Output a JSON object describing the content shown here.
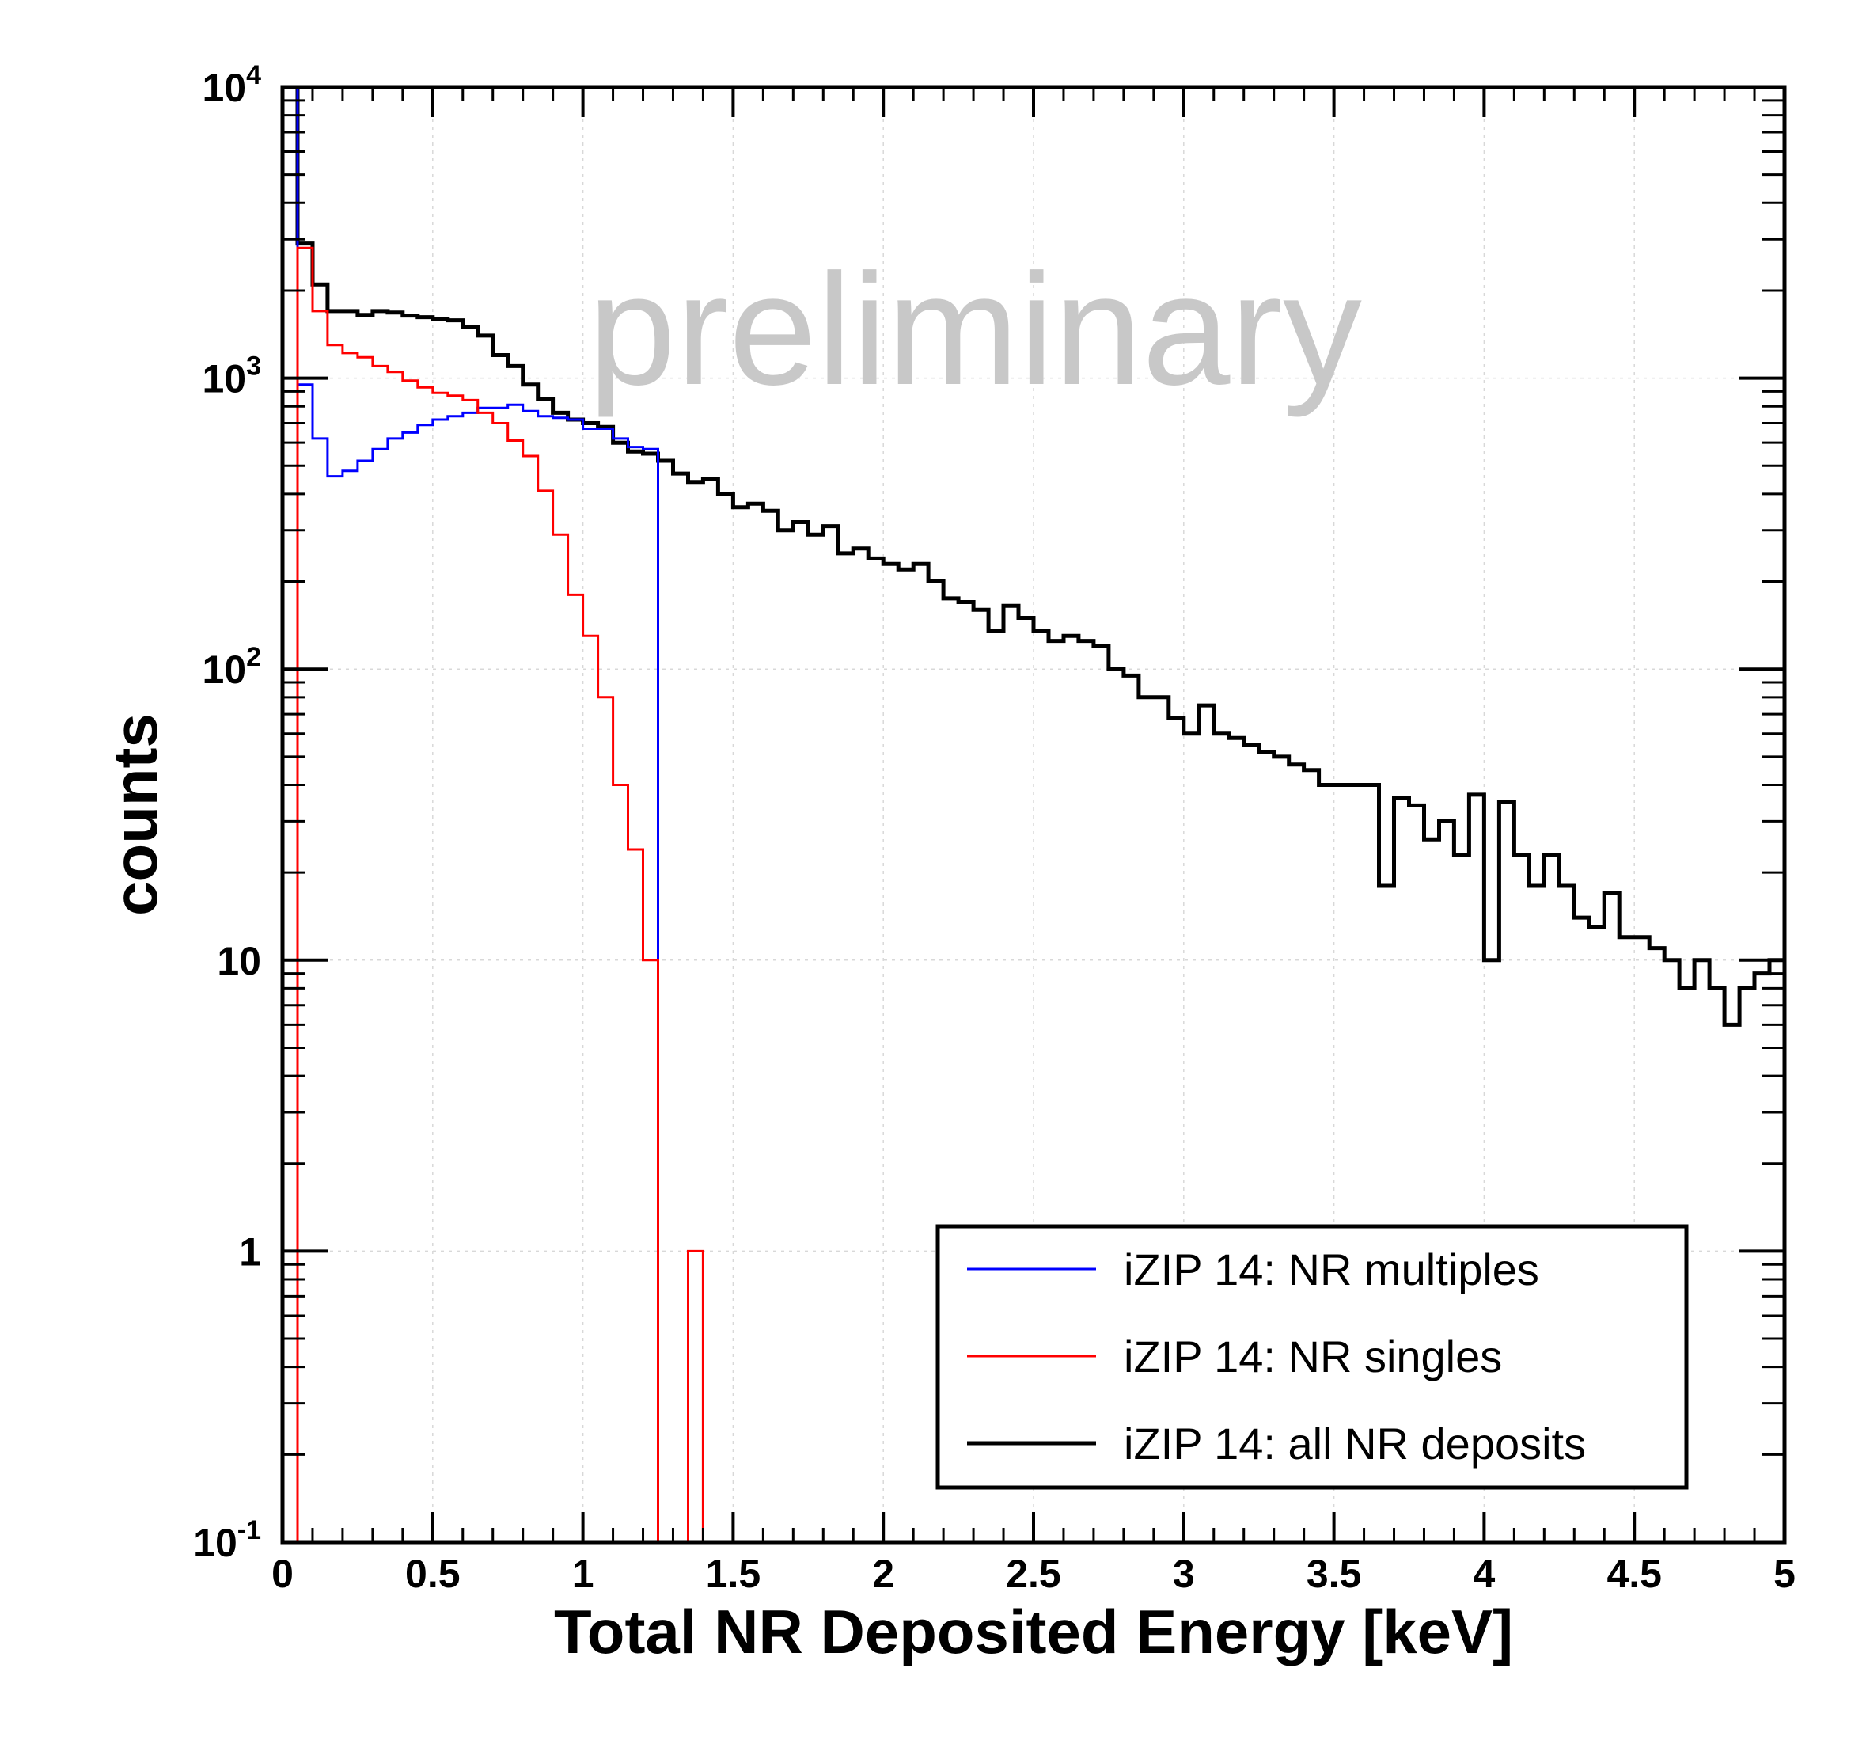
{
  "chart_data": {
    "type": "line",
    "watermark": "preliminary",
    "xlabel": "Total NR Deposited Energy [keV]",
    "ylabel": "counts",
    "xlim": [
      0,
      5
    ],
    "ylim": [
      0.1,
      10000
    ],
    "yscale": "log",
    "grid": true,
    "bin_width": 0.05,
    "x_ticks": [
      "0",
      "0.5",
      "1",
      "1.5",
      "2",
      "2.5",
      "3",
      "3.5",
      "4",
      "4.5",
      "5"
    ],
    "y_ticks": [
      {
        "base": "10",
        "exp": "-1"
      },
      {
        "base": "1",
        "exp": ""
      },
      {
        "base": "10",
        "exp": ""
      },
      {
        "base": "10",
        "exp": "2"
      },
      {
        "base": "10",
        "exp": "3"
      },
      {
        "base": "10",
        "exp": "4"
      }
    ],
    "legend": {
      "position": "bottom-right"
    },
    "series": [
      {
        "name": "iZIP 14: NR multiples",
        "color": "#0000ff",
        "x": [
          0.0,
          0.05,
          0.1,
          0.15,
          0.2,
          0.25,
          0.3,
          0.35,
          0.4,
          0.45,
          0.5,
          0.55,
          0.6,
          0.65,
          0.7,
          0.75,
          0.8,
          0.85,
          0.9,
          0.95,
          1.0,
          1.05,
          1.1,
          1.15,
          1.2
        ],
        "values": [
          10000,
          950,
          620,
          460,
          480,
          520,
          570,
          620,
          650,
          690,
          720,
          740,
          760,
          790,
          790,
          810,
          770,
          740,
          730,
          720,
          670,
          670,
          620,
          580,
          570
        ]
      },
      {
        "name": "iZIP 14: NR singles",
        "color": "#ff0000",
        "x": [
          0.0,
          0.05,
          0.1,
          0.15,
          0.2,
          0.25,
          0.3,
          0.35,
          0.4,
          0.45,
          0.5,
          0.55,
          0.6,
          0.65,
          0.7,
          0.75,
          0.8,
          0.85,
          0.9,
          0.95,
          1.0,
          1.05,
          1.1,
          1.15,
          1.2,
          1.25,
          1.3,
          1.35,
          1.4,
          1.45
        ],
        "values": [
          0.1,
          2800,
          1700,
          1300,
          1220,
          1180,
          1100,
          1050,
          980,
          930,
          890,
          870,
          840,
          760,
          700,
          610,
          540,
          410,
          290,
          180,
          130,
          80,
          40,
          24,
          10,
          0.1,
          0.1,
          1,
          0.1,
          0.1
        ]
      },
      {
        "name": "iZIP 14: all NR deposits",
        "color": "#000000",
        "x": [
          0.0,
          0.05,
          0.1,
          0.15,
          0.2,
          0.25,
          0.3,
          0.35,
          0.4,
          0.45,
          0.5,
          0.55,
          0.6,
          0.65,
          0.7,
          0.75,
          0.8,
          0.85,
          0.9,
          0.95,
          1.0,
          1.05,
          1.1,
          1.15,
          1.2,
          1.25,
          1.3,
          1.35,
          1.4,
          1.45,
          1.5,
          1.55,
          1.6,
          1.65,
          1.7,
          1.75,
          1.8,
          1.85,
          1.9,
          1.95,
          2.0,
          2.05,
          2.1,
          2.15,
          2.2,
          2.25,
          2.3,
          2.35,
          2.4,
          2.45,
          2.5,
          2.55,
          2.6,
          2.65,
          2.7,
          2.75,
          2.8,
          2.85,
          2.9,
          2.95,
          3.0,
          3.05,
          3.1,
          3.15,
          3.2,
          3.25,
          3.3,
          3.35,
          3.4,
          3.45,
          3.5,
          3.55,
          3.6,
          3.65,
          3.7,
          3.75,
          3.8,
          3.85,
          3.9,
          3.95,
          4.0,
          4.05,
          4.1,
          4.15,
          4.2,
          4.25,
          4.3,
          4.35,
          4.4,
          4.45,
          4.5,
          4.55,
          4.6,
          4.65,
          4.7,
          4.75,
          4.8,
          4.85,
          4.9,
          4.95
        ],
        "values": [
          10000,
          2900,
          2100,
          1700,
          1700,
          1650,
          1700,
          1680,
          1640,
          1620,
          1600,
          1580,
          1500,
          1400,
          1200,
          1100,
          950,
          850,
          760,
          720,
          700,
          680,
          600,
          560,
          550,
          520,
          470,
          440,
          450,
          400,
          360,
          370,
          350,
          300,
          320,
          290,
          310,
          250,
          260,
          240,
          230,
          220,
          230,
          200,
          175,
          170,
          160,
          135,
          165,
          150,
          135,
          125,
          130,
          125,
          120,
          100,
          95,
          80,
          80,
          68,
          60,
          75,
          60,
          58,
          55,
          52,
          50,
          47,
          45,
          40,
          40,
          40,
          40,
          18,
          36,
          34,
          26,
          30,
          23,
          37,
          10,
          35,
          23,
          18,
          23,
          18,
          14,
          13,
          17,
          12,
          12,
          11,
          10,
          8,
          10,
          8,
          6,
          8,
          9,
          10
        ]
      }
    ]
  }
}
